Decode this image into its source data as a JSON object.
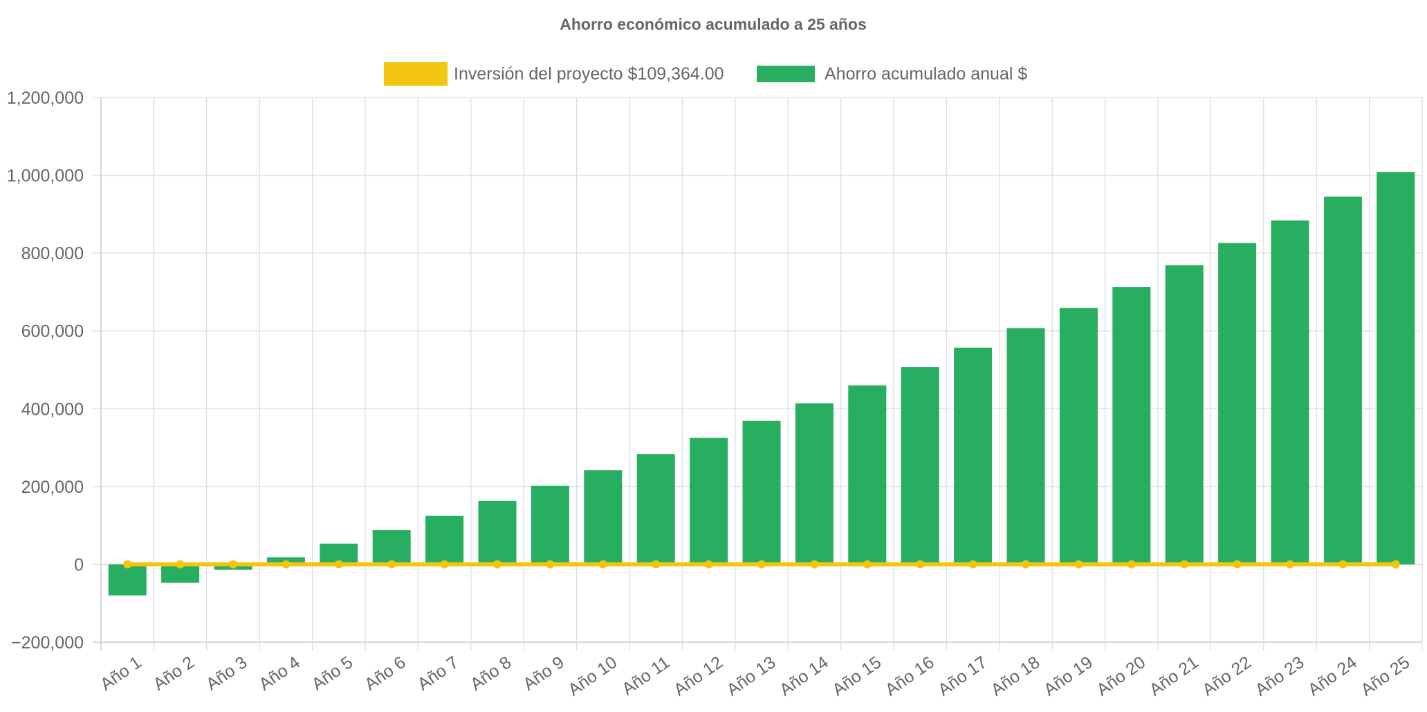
{
  "chart_data": {
    "type": "bar",
    "title": "Ahorro económico acumulado a 25 años",
    "categories": [
      "Año 1",
      "Año 2",
      "Año 3",
      "Año 4",
      "Año 5",
      "Año 6",
      "Año 7",
      "Año 8",
      "Año 9",
      "Año 10",
      "Año 11",
      "Año 12",
      "Año 13",
      "Año 14",
      "Año 15",
      "Año 16",
      "Año 17",
      "Año 18",
      "Año 19",
      "Año 20",
      "Año 21",
      "Año 22",
      "Año 23",
      "Año 24",
      "Año 25"
    ],
    "series": [
      {
        "name": "Inversión del proyecto $109,364.00",
        "type": "line",
        "color": "#f2c511",
        "values": [
          0,
          0,
          0,
          0,
          0,
          0,
          0,
          0,
          0,
          0,
          0,
          0,
          0,
          0,
          0,
          0,
          0,
          0,
          0,
          0,
          0,
          0,
          0,
          0,
          0
        ]
      },
      {
        "name": "Ahorro acumulado anual $",
        "type": "bar",
        "color": "#27ae60",
        "values": [
          -80000,
          -47000,
          -14000,
          18000,
          53000,
          88000,
          125000,
          163000,
          202000,
          242000,
          283000,
          325000,
          369000,
          414000,
          460000,
          507000,
          557000,
          607000,
          659000,
          713000,
          769000,
          826000,
          884000,
          945000,
          1008000
        ]
      }
    ],
    "ylim": [
      -200000,
      1200000
    ],
    "yticks": [
      -200000,
      0,
      200000,
      400000,
      600000,
      800000,
      1000000,
      1200000
    ],
    "ytick_labels": [
      "−200,000",
      "0",
      "200,000",
      "400,000",
      "600,000",
      "800,000",
      "1,000,000",
      "1,200,000"
    ],
    "grid": true,
    "legend": "top-center"
  }
}
